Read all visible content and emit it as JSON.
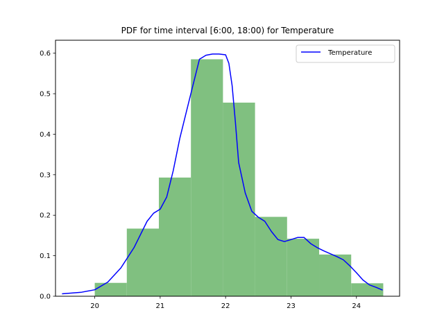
{
  "chart_data": {
    "type": "bar",
    "title": "PDF for time interval [6:00, 18:00) for Temperature",
    "xlabel": "",
    "ylabel": "",
    "xlim": [
      19.4,
      24.66
    ],
    "ylim": [
      0.0,
      0.632
    ],
    "x_ticks": [
      20,
      21,
      22,
      23,
      24
    ],
    "y_ticks": [
      0.0,
      0.1,
      0.2,
      0.3,
      0.4,
      0.5,
      0.6
    ],
    "grid": false,
    "legend_placement": "top-right",
    "histogram": {
      "color": "#80c080",
      "bins": [
        {
          "x0": 20.0,
          "x1": 20.49,
          "value": 0.033
        },
        {
          "x0": 20.49,
          "x1": 20.98,
          "value": 0.167
        },
        {
          "x0": 20.98,
          "x1": 21.47,
          "value": 0.293
        },
        {
          "x0": 21.47,
          "x1": 21.96,
          "value": 0.585
        },
        {
          "x0": 21.96,
          "x1": 22.45,
          "value": 0.478
        },
        {
          "x0": 22.45,
          "x1": 22.94,
          "value": 0.196
        },
        {
          "x0": 22.94,
          "x1": 23.43,
          "value": 0.142
        },
        {
          "x0": 23.43,
          "x1": 23.92,
          "value": 0.103
        },
        {
          "x0": 23.92,
          "x1": 24.41,
          "value": 0.032
        }
      ]
    },
    "series": [
      {
        "name": "Temperature",
        "color": "#0000ff",
        "x": [
          19.5,
          19.8,
          20.0,
          20.2,
          20.4,
          20.6,
          20.8,
          20.9,
          21.0,
          21.1,
          21.2,
          21.3,
          21.4,
          21.5,
          21.6,
          21.7,
          21.8,
          21.9,
          22.0,
          22.05,
          22.1,
          22.15,
          22.2,
          22.3,
          22.4,
          22.5,
          22.6,
          22.7,
          22.8,
          22.9,
          23.0,
          23.1,
          23.2,
          23.3,
          23.4,
          23.5,
          23.6,
          23.7,
          23.8,
          23.9,
          24.0,
          24.1,
          24.2,
          24.3,
          24.4
        ],
        "y": [
          0.006,
          0.01,
          0.016,
          0.035,
          0.07,
          0.12,
          0.185,
          0.205,
          0.215,
          0.245,
          0.31,
          0.39,
          0.455,
          0.52,
          0.585,
          0.595,
          0.598,
          0.598,
          0.596,
          0.575,
          0.52,
          0.43,
          0.33,
          0.255,
          0.21,
          0.195,
          0.185,
          0.16,
          0.14,
          0.135,
          0.14,
          0.145,
          0.145,
          0.13,
          0.12,
          0.112,
          0.105,
          0.098,
          0.09,
          0.075,
          0.058,
          0.04,
          0.028,
          0.022,
          0.015
        ]
      }
    ]
  }
}
